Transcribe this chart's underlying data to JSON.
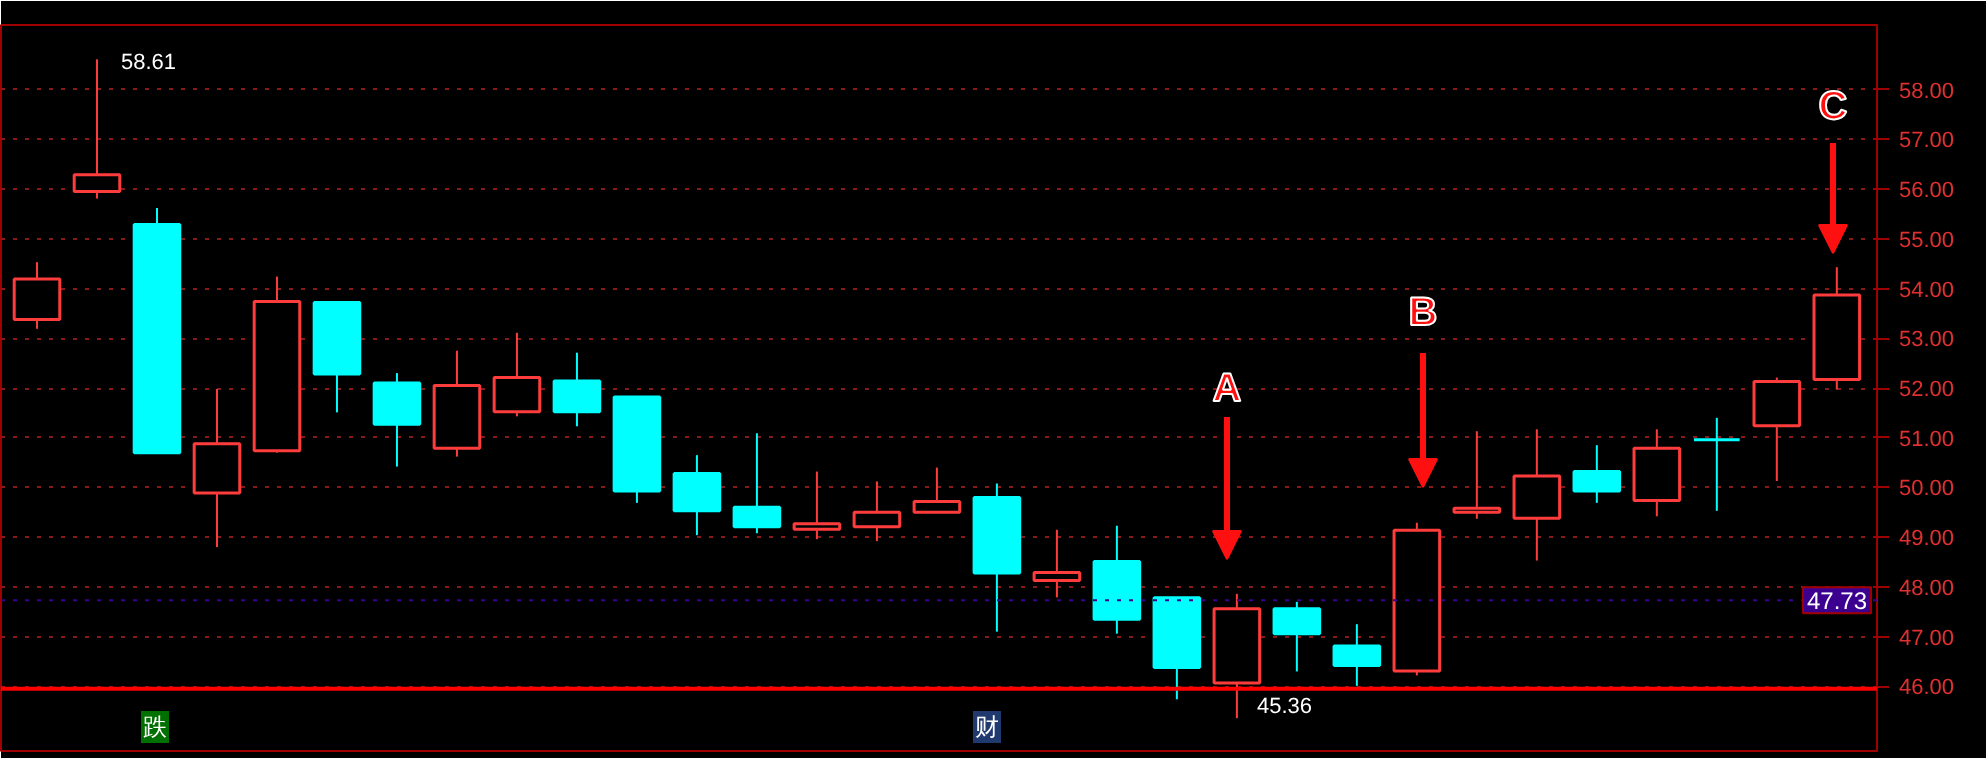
{
  "chart_data": {
    "type": "candlestick",
    "categories": [
      null,
      null,
      null,
      null,
      null,
      null,
      null,
      null,
      null,
      null,
      null,
      null,
      null,
      null,
      null,
      null,
      null,
      null,
      null,
      null,
      null,
      null,
      null,
      null,
      null,
      null,
      null,
      null,
      null,
      null,
      null
    ],
    "ohlc": [
      [
        53.38,
        54.53,
        53.19,
        54.19
      ],
      [
        55.95,
        58.61,
        55.81,
        56.29
      ],
      [
        55.29,
        55.62,
        50.7,
        50.7
      ],
      [
        49.89,
        51.98,
        48.8,
        50.88
      ],
      [
        50.74,
        54.24,
        50.7,
        53.74
      ],
      [
        53.72,
        53.72,
        51.51,
        52.28
      ],
      [
        52.1,
        52.3,
        50.42,
        51.27
      ],
      [
        50.79,
        52.75,
        50.62,
        52.05
      ],
      [
        51.52,
        53.11,
        51.43,
        52.21
      ],
      [
        52.14,
        52.71,
        51.23,
        51.52
      ],
      [
        51.82,
        51.82,
        49.69,
        49.93
      ],
      [
        50.28,
        50.65,
        49.04,
        49.53
      ],
      [
        49.6,
        51.09,
        49.08,
        49.21
      ],
      [
        49.16,
        50.32,
        48.96,
        49.27
      ],
      [
        49.21,
        50.12,
        48.92,
        49.5
      ],
      [
        49.5,
        50.4,
        49.5,
        49.72
      ],
      [
        49.8,
        50.08,
        47.1,
        48.28
      ],
      [
        48.13,
        49.15,
        47.79,
        48.29
      ],
      [
        48.51,
        49.23,
        47.06,
        47.35
      ],
      [
        47.78,
        47.78,
        45.74,
        46.38
      ],
      [
        46.07,
        47.86,
        45.36,
        47.56
      ],
      [
        47.56,
        47.7,
        46.3,
        47.06
      ],
      [
        46.81,
        47.25,
        46.01,
        46.42
      ],
      [
        46.31,
        49.29,
        46.22,
        49.14
      ],
      [
        49.5,
        51.13,
        49.37,
        49.58
      ],
      [
        49.38,
        51.17,
        48.53,
        50.23
      ],
      [
        50.32,
        50.85,
        49.69,
        49.93
      ],
      [
        49.74,
        51.17,
        49.42,
        50.79
      ],
      [
        50.96,
        51.4,
        49.53,
        50.96
      ],
      [
        51.24,
        52.21,
        50.13,
        52.13
      ],
      [
        52.17,
        54.43,
        51.97,
        53.87
      ]
    ],
    "colors": [
      "#ff3c3c",
      "#ff3c3c",
      "#00ffff",
      "#ff3c3c",
      "#ff3c3c",
      "#00ffff",
      "#00ffff",
      "#ff3c3c",
      "#ff3c3c",
      "#00ffff",
      "#00ffff",
      "#00ffff",
      "#00ffff",
      "#ff3c3c",
      "#ff3c3c",
      "#ff3c3c",
      "#00ffff",
      "#ff3c3c",
      "#00ffff",
      "#00ffff",
      "#ff3c3c",
      "#00ffff",
      "#00ffff",
      "#ff3c3c",
      "#ff3c3c",
      "#ff3c3c",
      "#00ffff",
      "#ff3c3c",
      "#00ffff",
      "#ff3c3c",
      "#ff3c3c"
    ],
    "ylim": [
      44.7,
      59.3
    ],
    "yticks": [
      {
        "value": 46,
        "label": "46.00"
      },
      {
        "value": 47,
        "label": "47.00"
      },
      {
        "value": 48,
        "label": "48.00"
      },
      {
        "value": 49,
        "label": "49.00"
      },
      {
        "value": 50,
        "label": "50.00"
      },
      {
        "value": 51,
        "label": "51.00"
      },
      {
        "value": 52,
        "label": "52.00"
      },
      {
        "value": 53,
        "label": "53.00"
      },
      {
        "value": 54,
        "label": "54.00"
      },
      {
        "value": 55,
        "label": "55.00"
      },
      {
        "value": 56,
        "label": "56.00"
      },
      {
        "value": 57,
        "label": "57.00"
      },
      {
        "value": 58,
        "label": "58.00"
      }
    ],
    "grid": "y",
    "tick_labels": "y",
    "ref_lines": [
      {
        "axis": "y",
        "value": 47.73,
        "label": "47.73",
        "color": "#3c0090"
      },
      {
        "axis": "y",
        "value": 45.95,
        "color": "#ff0000"
      }
    ],
    "annotations": [
      "58.61",
      "45.36",
      "A",
      "B",
      "C",
      "跌",
      "财"
    ]
  }
}
